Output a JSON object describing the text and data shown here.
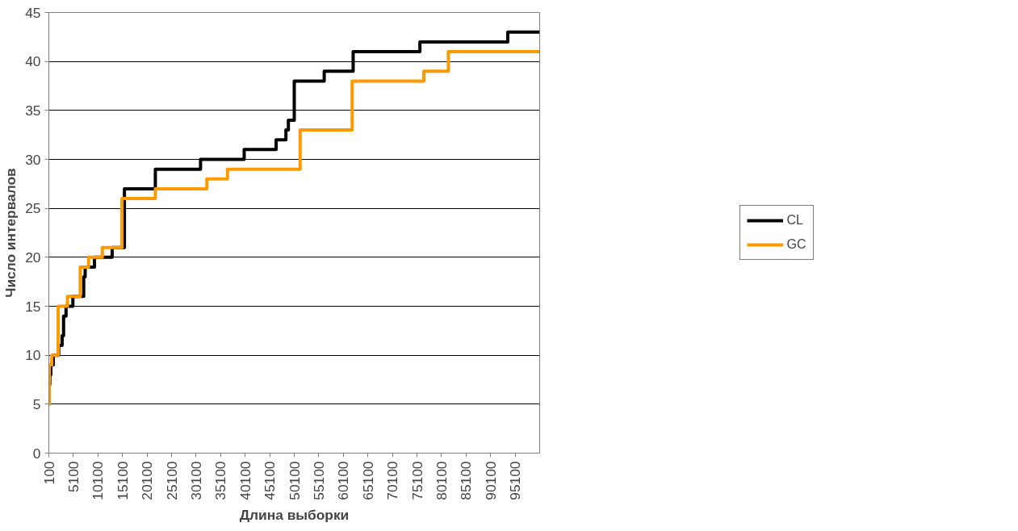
{
  "chart_data": {
    "type": "step",
    "xlabel": "Длина выборки",
    "ylabel": "Число интервалов",
    "xlim": [
      100,
      100100
    ],
    "ylim": [
      0,
      45
    ],
    "xticks": [
      100,
      5100,
      10100,
      15100,
      20100,
      25100,
      30100,
      35100,
      40100,
      45100,
      50100,
      55100,
      60100,
      65100,
      70100,
      75100,
      80100,
      85100,
      90100,
      95100
    ],
    "yticks": [
      0,
      5,
      10,
      15,
      20,
      25,
      30,
      35,
      40,
      45
    ],
    "grid": "y",
    "legend": "right",
    "line_style": "solid",
    "series": [
      {
        "name": "CL",
        "color": "#000000",
        "x": [
          100,
          300,
          500,
          1000,
          2100,
          2800,
          3100,
          3600,
          5000,
          7200,
          7500,
          9400,
          13000,
          15500,
          21800,
          31000,
          39900,
          46400,
          48400,
          48900,
          50100,
          56200,
          62100,
          75700,
          93600,
          100100
        ],
        "values": [
          7,
          8,
          9,
          10,
          11,
          12,
          14,
          15,
          16,
          18,
          19,
          20,
          21,
          27,
          29,
          30,
          31,
          32,
          33,
          34,
          38,
          39,
          41,
          42,
          43,
          43
        ]
      },
      {
        "name": "GC",
        "color": "#ff9900",
        "x": [
          100,
          200,
          700,
          2000,
          3900,
          6500,
          8200,
          11000,
          15000,
          21800,
          32300,
          36500,
          51300,
          61900,
          76500,
          81500,
          100100
        ],
        "values": [
          5,
          9,
          10,
          15,
          16,
          19,
          20,
          21,
          26,
          27,
          28,
          29,
          33,
          38,
          39,
          41,
          41
        ]
      }
    ]
  }
}
